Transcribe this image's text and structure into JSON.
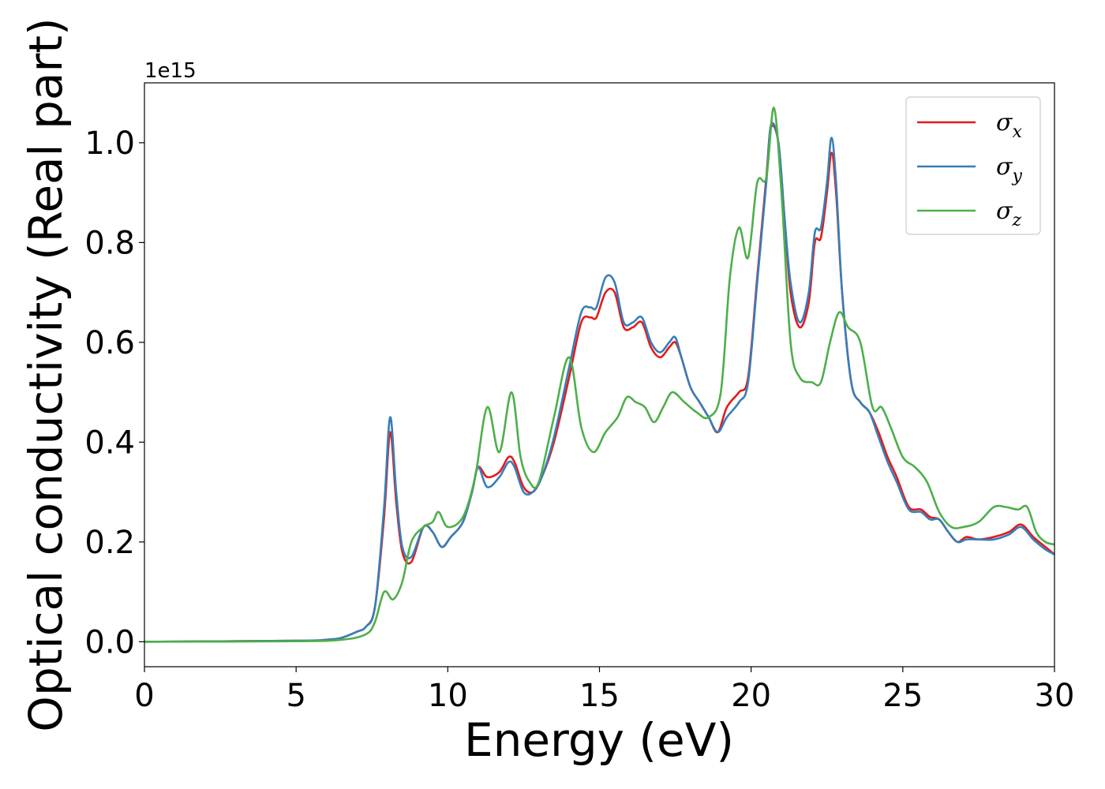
{
  "chart_data": {
    "type": "line",
    "title": "",
    "xlabel": "Energy (eV)",
    "ylabel": "Optical conductivity (Real part)",
    "y_offset_label": "1e15",
    "xlim": [
      0,
      30
    ],
    "ylim": [
      -0.05,
      1.12
    ],
    "x_ticks": [
      0,
      5,
      10,
      15,
      20,
      25,
      30
    ],
    "x_tick_labels": [
      "0",
      "5",
      "10",
      "15",
      "20",
      "25",
      "30"
    ],
    "y_ticks": [
      0.0,
      0.2,
      0.4,
      0.6,
      0.8,
      1.0
    ],
    "y_tick_labels": [
      "0.0",
      "0.2",
      "0.4",
      "0.6",
      "0.8",
      "1.0"
    ],
    "grid": false,
    "legend_position": "top-right",
    "series": [
      {
        "name": "σx",
        "color": "#e41a1c",
        "x": [
          0,
          5,
          6,
          6.5,
          7,
          7.3,
          7.6,
          7.9,
          8.1,
          8.3,
          8.5,
          8.8,
          9.2,
          9.5,
          9.8,
          10.1,
          10.5,
          10.8,
          11.0,
          11.3,
          11.7,
          12.0,
          12.2,
          12.5,
          12.8,
          13.1,
          13.5,
          14.0,
          14.4,
          14.7,
          14.9,
          15.2,
          15.5,
          15.8,
          16.1,
          16.4,
          16.7,
          17.0,
          17.3,
          17.5,
          17.7,
          18.0,
          18.3,
          18.6,
          18.9,
          19.2,
          19.6,
          19.9,
          20.2,
          20.5,
          20.65,
          20.9,
          21.1,
          21.3,
          21.6,
          21.9,
          22.1,
          22.3,
          22.5,
          22.65,
          22.8,
          23.0,
          23.3,
          23.6,
          23.9,
          24.2,
          24.5,
          24.8,
          25.2,
          25.6,
          25.9,
          26.2,
          26.5,
          26.8,
          27.1,
          27.5,
          28.0,
          28.5,
          28.9,
          29.3,
          29.7,
          30.0
        ],
        "values": [
          0.0,
          0.002,
          0.004,
          0.008,
          0.02,
          0.03,
          0.07,
          0.25,
          0.42,
          0.28,
          0.18,
          0.16,
          0.23,
          0.22,
          0.19,
          0.21,
          0.24,
          0.3,
          0.35,
          0.33,
          0.34,
          0.37,
          0.36,
          0.31,
          0.3,
          0.33,
          0.4,
          0.53,
          0.64,
          0.65,
          0.65,
          0.7,
          0.7,
          0.63,
          0.63,
          0.64,
          0.59,
          0.57,
          0.59,
          0.6,
          0.57,
          0.51,
          0.48,
          0.45,
          0.42,
          0.47,
          0.5,
          0.53,
          0.73,
          0.93,
          1.03,
          1.0,
          0.85,
          0.7,
          0.63,
          0.68,
          0.8,
          0.81,
          0.9,
          0.98,
          0.9,
          0.7,
          0.52,
          0.48,
          0.46,
          0.42,
          0.37,
          0.33,
          0.27,
          0.265,
          0.25,
          0.245,
          0.22,
          0.2,
          0.21,
          0.205,
          0.21,
          0.22,
          0.235,
          0.21,
          0.19,
          0.175
        ]
      },
      {
        "name": "σy",
        "color": "#377eb8",
        "x": [
          0,
          5,
          6,
          6.5,
          7,
          7.3,
          7.6,
          7.9,
          8.1,
          8.3,
          8.5,
          8.8,
          9.2,
          9.5,
          9.8,
          10.1,
          10.5,
          10.8,
          11.0,
          11.3,
          11.7,
          12.0,
          12.2,
          12.5,
          12.8,
          13.1,
          13.5,
          14.0,
          14.4,
          14.7,
          14.9,
          15.2,
          15.5,
          15.8,
          16.1,
          16.4,
          16.7,
          17.0,
          17.3,
          17.5,
          17.7,
          18.0,
          18.3,
          18.6,
          18.9,
          19.2,
          19.6,
          19.9,
          20.2,
          20.5,
          20.65,
          20.9,
          21.1,
          21.3,
          21.6,
          21.9,
          22.1,
          22.3,
          22.5,
          22.65,
          22.8,
          23.0,
          23.3,
          23.6,
          23.9,
          24.2,
          24.5,
          24.8,
          25.2,
          25.6,
          25.9,
          26.2,
          26.5,
          26.8,
          27.1,
          27.5,
          28.0,
          28.5,
          28.9,
          29.3,
          29.7,
          30.0
        ],
        "values": [
          0.0,
          0.002,
          0.004,
          0.008,
          0.02,
          0.03,
          0.07,
          0.27,
          0.45,
          0.3,
          0.19,
          0.17,
          0.23,
          0.22,
          0.19,
          0.21,
          0.24,
          0.3,
          0.35,
          0.31,
          0.33,
          0.36,
          0.35,
          0.3,
          0.3,
          0.33,
          0.41,
          0.55,
          0.66,
          0.67,
          0.67,
          0.73,
          0.72,
          0.64,
          0.64,
          0.65,
          0.6,
          0.58,
          0.6,
          0.61,
          0.57,
          0.51,
          0.48,
          0.45,
          0.42,
          0.45,
          0.48,
          0.52,
          0.72,
          0.92,
          1.035,
          1.0,
          0.85,
          0.72,
          0.64,
          0.7,
          0.82,
          0.83,
          0.92,
          1.01,
          0.92,
          0.7,
          0.52,
          0.48,
          0.46,
          0.41,
          0.36,
          0.32,
          0.265,
          0.26,
          0.245,
          0.245,
          0.22,
          0.2,
          0.205,
          0.205,
          0.205,
          0.215,
          0.23,
          0.205,
          0.185,
          0.175
        ]
      },
      {
        "name": "σz",
        "color": "#4daf4a",
        "x": [
          0,
          5,
          6.5,
          7.3,
          7.6,
          7.9,
          8.2,
          8.5,
          8.8,
          9.2,
          9.5,
          9.7,
          10.0,
          10.5,
          10.9,
          11.3,
          11.7,
          12.1,
          12.4,
          12.7,
          13.0,
          13.5,
          14.0,
          14.4,
          14.8,
          15.2,
          15.6,
          15.9,
          16.2,
          16.5,
          16.8,
          17.1,
          17.4,
          17.8,
          18.2,
          18.6,
          19.0,
          19.3,
          19.6,
          19.9,
          20.2,
          20.5,
          20.75,
          21.0,
          21.3,
          21.6,
          22.0,
          22.3,
          22.6,
          22.9,
          23.2,
          23.6,
          24.0,
          24.3,
          24.6,
          25.0,
          25.4,
          25.8,
          26.2,
          26.6,
          27.0,
          27.5,
          28.0,
          28.4,
          28.8,
          29.1,
          29.4,
          29.7,
          30.0
        ],
        "values": [
          0.0,
          0.001,
          0.004,
          0.015,
          0.04,
          0.1,
          0.085,
          0.12,
          0.2,
          0.23,
          0.24,
          0.26,
          0.23,
          0.25,
          0.33,
          0.47,
          0.38,
          0.5,
          0.37,
          0.32,
          0.32,
          0.45,
          0.57,
          0.43,
          0.38,
          0.42,
          0.45,
          0.49,
          0.48,
          0.47,
          0.44,
          0.47,
          0.5,
          0.48,
          0.46,
          0.45,
          0.5,
          0.73,
          0.83,
          0.77,
          0.92,
          0.93,
          1.07,
          0.9,
          0.6,
          0.53,
          0.52,
          0.52,
          0.6,
          0.66,
          0.63,
          0.6,
          0.47,
          0.47,
          0.43,
          0.37,
          0.35,
          0.32,
          0.26,
          0.23,
          0.23,
          0.24,
          0.27,
          0.27,
          0.265,
          0.27,
          0.22,
          0.2,
          0.195
        ]
      }
    ]
  }
}
